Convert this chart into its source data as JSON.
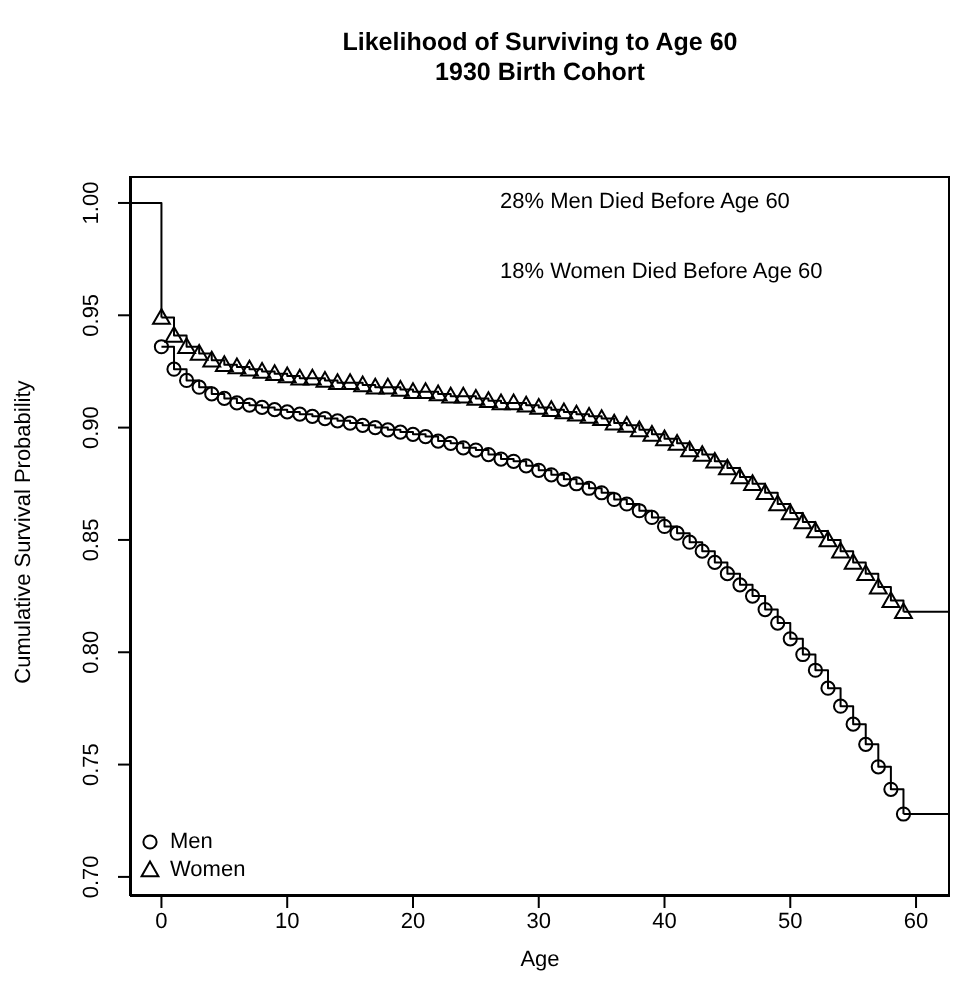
{
  "chart_data": {
    "type": "step",
    "title": "Likelihood of Surviving to Age 60\n1930 Birth Cohort",
    "xlabel": "Age",
    "ylabel": "Cumulative Survival Probability",
    "annotations": [
      "28% Men Died Before Age 60",
      "18% Women Died Before Age 60"
    ],
    "xlim": [
      -2.5,
      62.7
    ],
    "xticks": [
      0,
      10,
      20,
      30,
      40,
      50,
      60
    ],
    "ylim": [
      0.6915,
      1.012
    ],
    "yticks": [
      {
        "value": 1.0,
        "label": "1.00"
      },
      {
        "value": 0.95,
        "label": "0.95"
      },
      {
        "value": 0.9,
        "label": "0.90"
      },
      {
        "value": 0.85,
        "label": "0.85"
      },
      {
        "value": 0.8,
        "label": "0.80"
      },
      {
        "value": 0.75,
        "label": "0.75"
      },
      {
        "value": 0.7,
        "label": "0.70"
      }
    ],
    "legend": "bottom left",
    "series": [
      {
        "name": "Men",
        "color": "#000000",
        "marker": "circle",
        "x": [
          0,
          1,
          2,
          3,
          4,
          5,
          6,
          7,
          8,
          9,
          10,
          11,
          12,
          13,
          14,
          15,
          16,
          17,
          18,
          19,
          20,
          21,
          22,
          23,
          24,
          25,
          26,
          27,
          28,
          29,
          30,
          31,
          32,
          33,
          34,
          35,
          36,
          37,
          38,
          39,
          40,
          41,
          42,
          43,
          44,
          45,
          46,
          47,
          48,
          49,
          50,
          51,
          52,
          53,
          54,
          55,
          56,
          57,
          58,
          59
        ],
        "values": [
          0.936,
          0.926,
          0.921,
          0.918,
          0.915,
          0.913,
          0.911,
          0.91,
          0.909,
          0.908,
          0.907,
          0.906,
          0.905,
          0.904,
          0.903,
          0.902,
          0.901,
          0.9,
          0.899,
          0.898,
          0.897,
          0.896,
          0.894,
          0.893,
          0.891,
          0.89,
          0.888,
          0.886,
          0.885,
          0.883,
          0.881,
          0.879,
          0.877,
          0.875,
          0.873,
          0.871,
          0.868,
          0.866,
          0.863,
          0.86,
          0.856,
          0.853,
          0.849,
          0.845,
          0.84,
          0.835,
          0.83,
          0.825,
          0.819,
          0.813,
          0.806,
          0.799,
          0.792,
          0.784,
          0.776,
          0.768,
          0.759,
          0.749,
          0.739,
          0.728
        ]
      },
      {
        "name": "Women",
        "color": "#000000",
        "marker": "triangle",
        "x": [
          0,
          1,
          2,
          3,
          4,
          5,
          6,
          7,
          8,
          9,
          10,
          11,
          12,
          13,
          14,
          15,
          16,
          17,
          18,
          19,
          20,
          21,
          22,
          23,
          24,
          25,
          26,
          27,
          28,
          29,
          30,
          31,
          32,
          33,
          34,
          35,
          36,
          37,
          38,
          39,
          40,
          41,
          42,
          43,
          44,
          45,
          46,
          47,
          48,
          49,
          50,
          51,
          52,
          53,
          54,
          55,
          56,
          57,
          58,
          59
        ],
        "values": [
          0.949,
          0.941,
          0.936,
          0.933,
          0.93,
          0.928,
          0.927,
          0.926,
          0.925,
          0.924,
          0.923,
          0.922,
          0.922,
          0.921,
          0.92,
          0.92,
          0.919,
          0.918,
          0.918,
          0.917,
          0.916,
          0.916,
          0.915,
          0.914,
          0.914,
          0.913,
          0.912,
          0.911,
          0.911,
          0.91,
          0.909,
          0.908,
          0.907,
          0.906,
          0.905,
          0.904,
          0.902,
          0.901,
          0.899,
          0.897,
          0.895,
          0.893,
          0.89,
          0.888,
          0.885,
          0.882,
          0.878,
          0.875,
          0.871,
          0.866,
          0.862,
          0.858,
          0.854,
          0.85,
          0.845,
          0.84,
          0.835,
          0.829,
          0.823,
          0.818
        ]
      },
      {
        "color": "#000000",
        "marker": "none",
        "x": [
          -2.5,
          0
        ],
        "values": [
          1.0,
          0.949
        ]
      },
      {
        "color": "#000000",
        "marker": "none",
        "x": [
          59,
          62.7
        ],
        "values": [
          0.728,
          0.728
        ]
      },
      {
        "color": "#000000",
        "marker": "none",
        "x": [
          59,
          62.7
        ],
        "values": [
          0.818,
          0.818
        ]
      }
    ]
  }
}
